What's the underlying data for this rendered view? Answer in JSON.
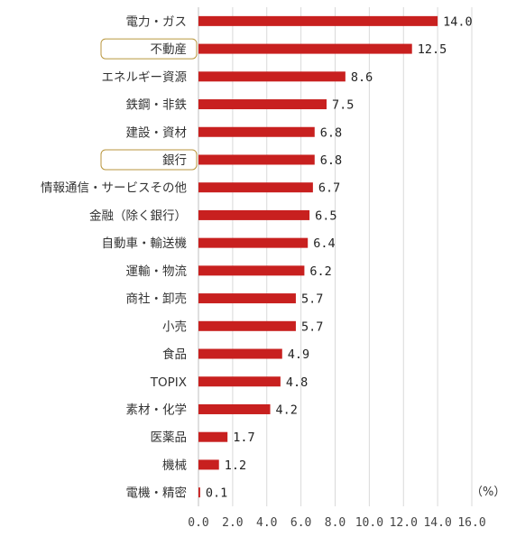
{
  "chart_data": {
    "type": "bar",
    "orientation": "horizontal",
    "categories": [
      "電力・ガス",
      "不動産",
      "エネルギー資源",
      "鉄鋼・非鉄",
      "建設・資材",
      "銀行",
      "情報通信・サービスその他",
      "金融（除く銀行）",
      "自動車・輸送機",
      "運輸・物流",
      "商社・卸売",
      "小売",
      "食品",
      "TOPIX",
      "素材・化学",
      "医薬品",
      "機械",
      "電機・精密"
    ],
    "values": [
      14.0,
      12.5,
      8.6,
      7.5,
      6.8,
      6.8,
      6.7,
      6.5,
      6.4,
      6.2,
      5.7,
      5.7,
      4.9,
      4.8,
      4.2,
      1.7,
      1.2,
      0.1
    ],
    "value_labels": [
      "14.0",
      "12.5",
      "8.6",
      "7.5",
      "6.8",
      "6.8",
      "6.7",
      "6.5",
      "6.4",
      "6.2",
      "5.7",
      "5.7",
      "4.9",
      "4.8",
      "4.2",
      "1.7",
      "1.2",
      "0.1"
    ],
    "highlighted": [
      "不動産",
      "銀行"
    ],
    "x_ticks": [
      "0.0",
      "2.0",
      "4.0",
      "6.0",
      "8.0",
      "10.0",
      "12.0",
      "14.0",
      "16.0"
    ],
    "xlim": [
      0,
      16
    ],
    "unit": "（%）",
    "grid": true,
    "bar_color": "#c8201f",
    "highlight_color": "#b8963c"
  }
}
